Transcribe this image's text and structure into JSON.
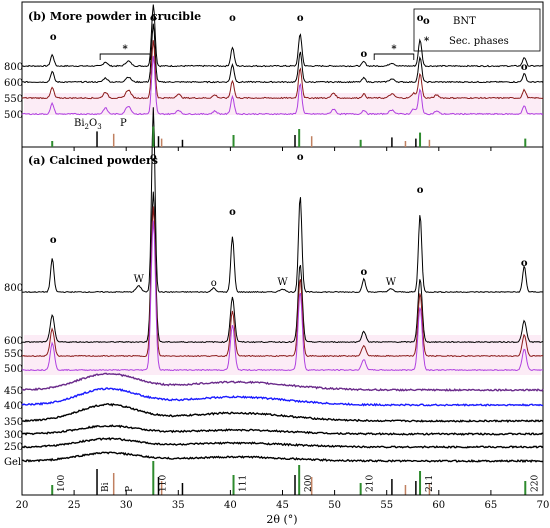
{
  "chart_data": {
    "type": "line",
    "xlabel": "2θ (°)",
    "xlim": [
      20,
      70
    ],
    "x_ticks": [
      20,
      25,
      30,
      35,
      40,
      45,
      50,
      55,
      60,
      65,
      70
    ],
    "panels": [
      {
        "id": "b",
        "title": "(b) More powder in crucible",
        "legend": [
          {
            "symbol": "o",
            "label": "BNT"
          },
          {
            "symbol": "*",
            "label": "Sec. phases"
          }
        ],
        "series": [
          {
            "name": "800",
            "color": "#000000",
            "offset": 0
          },
          {
            "name": "600",
            "color": "#000000",
            "offset": 1
          },
          {
            "name": "550",
            "color": "#8b1a1a",
            "offset": 2
          },
          {
            "name": "500",
            "color": "#b040e0",
            "offset": 3
          }
        ],
        "peak_markers": [
          {
            "x": 23.0,
            "symbol": "o"
          },
          {
            "x": 32.6,
            "symbol": "o"
          },
          {
            "x": 40.2,
            "symbol": "o"
          },
          {
            "x": 46.7,
            "symbol": "o"
          },
          {
            "x": 52.8,
            "symbol": "o"
          },
          {
            "x": 58.2,
            "symbol": "o"
          },
          {
            "x": 68.2,
            "symbol": "o"
          }
        ],
        "bracket_labels": [
          {
            "x_start": 27.5,
            "x_end": 32.3,
            "symbol": "*"
          },
          {
            "x_start": 53.8,
            "x_end": 57.6,
            "symbol": "*"
          }
        ],
        "reference_labels": [
          {
            "text": "Bi",
            "subscript": "2",
            "suffix": "O",
            "subscript2": "3"
          },
          {
            "text": "P"
          }
        ]
      },
      {
        "id": "a",
        "title": "(a) Calcined powders",
        "series": [
          {
            "name": "800",
            "color": "#000000",
            "group": "upper"
          },
          {
            "name": "600",
            "color": "#000000",
            "group": "mid"
          },
          {
            "name": "550",
            "color": "#8b1a1a",
            "group": "mid"
          },
          {
            "name": "500",
            "color": "#b040e0",
            "group": "mid"
          },
          {
            "name": "450",
            "color": "#6a2a8a",
            "group": "low"
          },
          {
            "name": "400",
            "color": "#1a1aff",
            "group": "low"
          },
          {
            "name": "350",
            "color": "#000000",
            "group": "low"
          },
          {
            "name": "300",
            "color": "#000000",
            "group": "low"
          },
          {
            "name": "250",
            "color": "#000000",
            "group": "low"
          },
          {
            "name": "Gel",
            "color": "#000000",
            "group": "low"
          }
        ],
        "peak_markers": [
          {
            "x": 23.0,
            "symbol": "o"
          },
          {
            "x": 32.6,
            "symbol": "o"
          },
          {
            "x": 40.2,
            "symbol": "o"
          },
          {
            "x": 46.7,
            "symbol": "o"
          },
          {
            "x": 52.8,
            "symbol": "o"
          },
          {
            "x": 58.2,
            "symbol": "o"
          },
          {
            "x": 68.2,
            "symbol": "o"
          }
        ],
        "secondary_markers": [
          {
            "x": 31.2,
            "symbol": "W"
          },
          {
            "x": 38.4,
            "symbol": "o"
          },
          {
            "x": 45.0,
            "symbol": "W"
          },
          {
            "x": 55.4,
            "symbol": "W"
          }
        ],
        "hkl_labels": [
          {
            "x": 22.9,
            "text": "100"
          },
          {
            "x": 32.6,
            "text": "110"
          },
          {
            "x": 40.3,
            "text": "111"
          },
          {
            "x": 46.6,
            "text": "200"
          },
          {
            "x": 52.5,
            "text": "210"
          },
          {
            "x": 58.2,
            "text": "211"
          },
          {
            "x": 68.3,
            "text": "220"
          }
        ],
        "reference_labels": [
          {
            "x": 27.3,
            "text": "Bi"
          },
          {
            "x": 29.6,
            "text": "P"
          }
        ]
      }
    ],
    "reference_sticks": {
      "BNT": [
        22.9,
        32.6,
        40.3,
        46.6,
        52.5,
        58.2,
        68.3
      ],
      "Bi2O3": [
        27.2,
        33.1,
        35.4,
        46.2,
        55.5,
        57.8
      ],
      "pyrochlore": [
        28.8,
        33.4,
        47.8,
        56.8,
        59.1
      ]
    },
    "grid": false
  }
}
